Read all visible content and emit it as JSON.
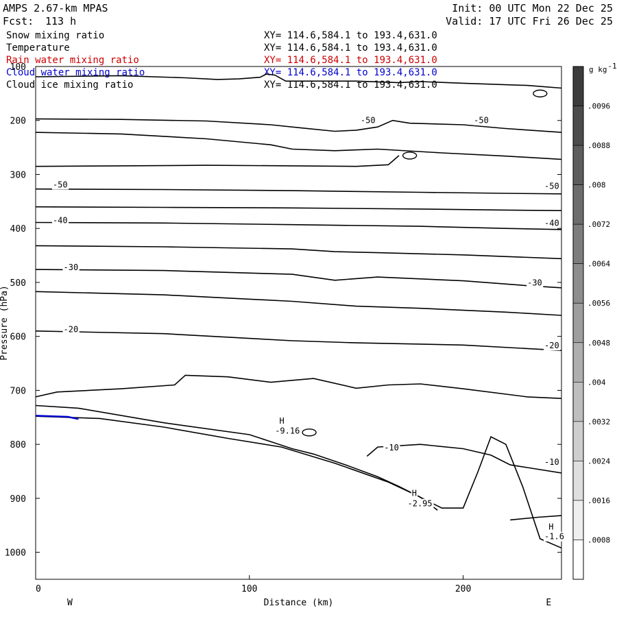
{
  "header": {
    "model": "AMPS 2.67-km MPAS",
    "forecast_label": "Fcst:",
    "forecast_value": "113 h",
    "init": "Init: 00 UTC Mon 22 Dec 25",
    "valid": "Valid: 17 UTC Fri 26 Dec 25"
  },
  "fields": [
    {
      "name": "Snow mixing ratio",
      "xy": "XY= 114.6,584.1 to 193.4,631.0",
      "color": "#000000"
    },
    {
      "name": "Temperature",
      "xy": "XY= 114.6,584.1 to 193.4,631.0",
      "color": "#000000"
    },
    {
      "name": "Rain water mixing ratio",
      "xy": "XY= 114.6,584.1 to 193.4,631.0",
      "color": "#cc0000"
    },
    {
      "name": "Cloud water mixing ratio",
      "xy": "XY= 114.6,584.1 to 193.4,631.0",
      "color": "#0000cc"
    },
    {
      "name": "Cloud ice mixing ratio",
      "xy": "XY= 114.6,584.1 to 193.4,631.0",
      "color": "#000000"
    }
  ],
  "chart_data": {
    "type": "contour-cross-section",
    "title": "AMPS 2.67-km MPAS",
    "xlabel": "Distance (km)",
    "ylabel": "Pressure (hPa)",
    "xlim": [
      0,
      246
    ],
    "ylim": [
      1050,
      100
    ],
    "x_ticks": [
      0,
      100,
      200
    ],
    "y_ticks": [
      100,
      200,
      300,
      400,
      500,
      600,
      700,
      800,
      900,
      1000
    ],
    "direction_left": "W",
    "direction_right": "E",
    "colorbar": {
      "unit": "g kg",
      "unit_exp": "-1",
      "levels": [
        ".0096",
        ".0088",
        ".008",
        ".0072",
        ".0064",
        ".0056",
        ".0048",
        ".004",
        ".0032",
        ".0024",
        ".0016",
        ".0008"
      ]
    },
    "contours": [
      {
        "level": "top",
        "points": [
          [
            0,
            119
          ],
          [
            40,
            117
          ],
          [
            70,
            121
          ],
          [
            85,
            124
          ],
          [
            95,
            123
          ],
          [
            105,
            120
          ],
          [
            108,
            114
          ],
          [
            112,
            116
          ],
          [
            117,
            127
          ],
          [
            150,
            127
          ],
          [
            170,
            130
          ],
          [
            180,
            128
          ],
          [
            200,
            131
          ],
          [
            230,
            135
          ],
          [
            246,
            140
          ]
        ]
      },
      {
        "level": -50,
        "points": [
          [
            0,
            197
          ],
          [
            40,
            198
          ],
          [
            80,
            201
          ],
          [
            110,
            208
          ],
          [
            125,
            214
          ],
          [
            140,
            220
          ],
          [
            150,
            218
          ],
          [
            160,
            212
          ],
          [
            167,
            200
          ],
          [
            175,
            205
          ],
          [
            200,
            208
          ],
          [
            220,
            215
          ],
          [
            246,
            222
          ]
        ]
      },
      {
        "level": -50,
        "points": [
          [
            0,
            222
          ],
          [
            40,
            225
          ],
          [
            80,
            234
          ],
          [
            110,
            245
          ],
          [
            120,
            253
          ],
          [
            140,
            256
          ],
          [
            160,
            253
          ],
          [
            190,
            260
          ],
          [
            220,
            266
          ],
          [
            246,
            272
          ]
        ]
      },
      {
        "level": -50,
        "points": [
          [
            0,
            285
          ],
          [
            40,
            284
          ],
          [
            80,
            283
          ],
          [
            120,
            284
          ],
          [
            150,
            285
          ],
          [
            165,
            282
          ],
          [
            170,
            265
          ]
        ]
      },
      {
        "level": -50,
        "points": [
          [
            0,
            327
          ],
          [
            60,
            328
          ],
          [
            120,
            330
          ],
          [
            180,
            333
          ],
          [
            220,
            335
          ],
          [
            246,
            336
          ]
        ]
      },
      {
        "level": -50,
        "points": [
          [
            0,
            360
          ],
          [
            60,
            361
          ],
          [
            120,
            362
          ],
          [
            180,
            364
          ],
          [
            220,
            366
          ],
          [
            246,
            367
          ]
        ]
      },
      {
        "level": -40,
        "points": [
          [
            0,
            389
          ],
          [
            60,
            390
          ],
          [
            120,
            393
          ],
          [
            180,
            396
          ],
          [
            220,
            400
          ],
          [
            246,
            402
          ]
        ]
      },
      {
        "level": -40,
        "points": [
          [
            0,
            432
          ],
          [
            60,
            434
          ],
          [
            120,
            438
          ],
          [
            140,
            443
          ],
          [
            160,
            445
          ],
          [
            200,
            449
          ],
          [
            246,
            456
          ]
        ]
      },
      {
        "level": -30,
        "points": [
          [
            0,
            476
          ],
          [
            60,
            478
          ],
          [
            120,
            485
          ],
          [
            140,
            496
          ],
          [
            160,
            490
          ],
          [
            200,
            497
          ],
          [
            230,
            506
          ],
          [
            246,
            510
          ]
        ]
      },
      {
        "level": -30,
        "points": [
          [
            0,
            517
          ],
          [
            60,
            523
          ],
          [
            120,
            535
          ],
          [
            150,
            544
          ],
          [
            180,
            548
          ],
          [
            220,
            555
          ],
          [
            246,
            561
          ]
        ]
      },
      {
        "level": -20,
        "points": [
          [
            0,
            590
          ],
          [
            60,
            595
          ],
          [
            120,
            608
          ],
          [
            150,
            612
          ],
          [
            200,
            616
          ],
          [
            246,
            626
          ]
        ]
      },
      {
        "level": -20,
        "points": [
          [
            0,
            712
          ],
          [
            10,
            703
          ],
          [
            40,
            697
          ],
          [
            65,
            690
          ],
          [
            70,
            672
          ],
          [
            90,
            675
          ],
          [
            110,
            685
          ],
          [
            130,
            678
          ],
          [
            150,
            696
          ],
          [
            165,
            690
          ],
          [
            180,
            688
          ],
          [
            200,
            697
          ],
          [
            230,
            712
          ],
          [
            246,
            715
          ]
        ]
      },
      {
        "level": -10,
        "points": [
          [
            0,
            728
          ],
          [
            20,
            733
          ],
          [
            60,
            760
          ],
          [
            100,
            782
          ],
          [
            110,
            795
          ],
          [
            120,
            808
          ],
          [
            130,
            818
          ],
          [
            145,
            838
          ],
          [
            160,
            860
          ],
          [
            170,
            878
          ],
          [
            180,
            898
          ],
          [
            188,
            922
          ]
        ]
      },
      {
        "level": -10,
        "points": [
          [
            155,
            822
          ],
          [
            160,
            805
          ],
          [
            180,
            800
          ],
          [
            200,
            808
          ],
          [
            213,
            820
          ],
          [
            222,
            838
          ],
          [
            230,
            843
          ],
          [
            246,
            853
          ]
        ]
      },
      {
        "level": -10,
        "points": [
          [
            222,
            940
          ],
          [
            235,
            935
          ],
          [
            246,
            932
          ]
        ]
      }
    ],
    "terrain": [
      [
        0,
        748
      ],
      [
        30,
        752
      ],
      [
        60,
        768
      ],
      [
        90,
        789
      ],
      [
        115,
        805
      ],
      [
        140,
        835
      ],
      [
        165,
        870
      ],
      [
        178,
        894
      ],
      [
        190,
        918
      ],
      [
        200,
        918
      ],
      [
        207,
        850
      ],
      [
        213,
        786
      ],
      [
        220,
        800
      ],
      [
        228,
        880
      ],
      [
        236,
        975
      ],
      [
        246,
        992
      ]
    ],
    "labels": [
      {
        "text": "-50",
        "x": 152,
        "y": 205
      },
      {
        "text": "-50",
        "x": 205,
        "y": 205
      },
      {
        "text": "-50",
        "x": 8,
        "y": 324
      },
      {
        "text": "-50",
        "x": 238,
        "y": 327
      },
      {
        "text": "-40",
        "x": 8,
        "y": 390
      },
      {
        "text": "-40",
        "x": 238,
        "y": 395
      },
      {
        "text": "-30",
        "x": 13,
        "y": 477
      },
      {
        "text": "-30",
        "x": 230,
        "y": 506
      },
      {
        "text": "-20",
        "x": 13,
        "y": 592
      },
      {
        "text": "-20",
        "x": 238,
        "y": 622
      },
      {
        "text": "-10",
        "x": 163,
        "y": 811
      },
      {
        "text": "-10",
        "x": 238,
        "y": 838
      },
      {
        "text": "H",
        "x": 114,
        "y": 762
      },
      {
        "text": "-9.16",
        "x": 112,
        "y": 780
      },
      {
        "text": "H",
        "x": 176,
        "y": 896
      },
      {
        "text": "-2.95",
        "x": 174,
        "y": 915
      },
      {
        "text": "H",
        "x": 240,
        "y": 958
      },
      {
        "text": "-1.6",
        "x": 238,
        "y": 976
      }
    ],
    "islands": [
      {
        "x": 128,
        "y": 778
      },
      {
        "x": 175,
        "y": 265
      },
      {
        "x": 236,
        "y": 150
      }
    ],
    "cloud_water": [
      [
        0,
        747
      ],
      [
        15,
        749
      ],
      [
        20,
        753
      ]
    ]
  }
}
